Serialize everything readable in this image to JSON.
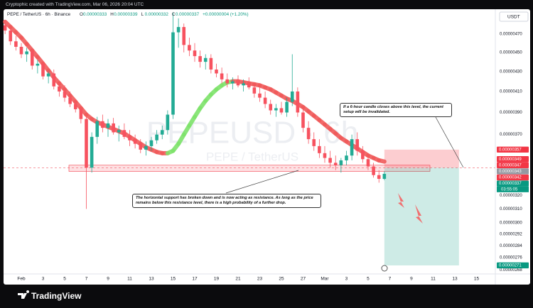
{
  "header": {
    "credit": "Cryptophic created with TradingView.com, Mar 06, 2026 20:04 UTC",
    "symbol": "PEPE / TetherUS · 6h · Binance",
    "ohlc_letters": [
      "O",
      "H",
      "L",
      "C"
    ],
    "ohlc": [
      3.33e-06,
      3.39e-06,
      3.32e-06,
      3.37e-06
    ],
    "change": "+0.00000004 (+1.20%)",
    "currency": "USDT",
    "watermark": "PEPEUSD · 6h",
    "watermark_sub": "PEPE / TetherUS",
    "logo": "TradingView"
  },
  "chart_data": {
    "type": "candlestick",
    "log": true,
    "up_color": "#22ab94",
    "down_color": "#f7525f",
    "ma_up_color": "#7ee36b",
    "ma_down_color": "#f05a5a",
    "ylim": [
      2.66e-06,
      4.97e-06
    ],
    "xlim": [
      -1.64,
      43.74
    ],
    "yticks": [
      {
        "value": 4.7e-06,
        "label": "0.00000470"
      },
      {
        "value": 4.5e-06,
        "label": "0.00000450"
      },
      {
        "value": 4.3e-06,
        "label": "0.00000430"
      },
      {
        "value": 4.1e-06,
        "label": "0.00000410"
      },
      {
        "value": 3.9e-06,
        "label": "0.00000390"
      },
      {
        "value": 3.7e-06,
        "label": "0.00000370"
      },
      {
        "value": 3.2e-06,
        "label": "0.00000320"
      },
      {
        "value": 3.1e-06,
        "label": "0.00000310"
      },
      {
        "value": 3e-06,
        "label": "0.00000300"
      },
      {
        "value": 2.92e-06,
        "label": "0.00000292"
      },
      {
        "value": 2.84e-06,
        "label": "0.00000284"
      },
      {
        "value": 2.76e-06,
        "label": "0.00000276"
      },
      {
        "value": 2.68e-06,
        "label": "0.00000268"
      }
    ],
    "xticks": [
      {
        "value": 0,
        "label": "Feb"
      },
      {
        "value": 2,
        "label": "3"
      },
      {
        "value": 4,
        "label": "5"
      },
      {
        "value": 6,
        "label": "7"
      },
      {
        "value": 8,
        "label": "9"
      },
      {
        "value": 10,
        "label": "11"
      },
      {
        "value": 12,
        "label": "13"
      },
      {
        "value": 14,
        "label": "15"
      },
      {
        "value": 16,
        "label": "17"
      },
      {
        "value": 18,
        "label": "19"
      },
      {
        "value": 20,
        "label": "21"
      },
      {
        "value": 22,
        "label": "23"
      },
      {
        "value": 24,
        "label": "25"
      },
      {
        "value": 26,
        "label": "27"
      },
      {
        "value": 28,
        "label": "Mar"
      },
      {
        "value": 30,
        "label": "3"
      },
      {
        "value": 32,
        "label": "5"
      },
      {
        "value": 34,
        "label": "7"
      },
      {
        "value": 36,
        "label": "9"
      },
      {
        "value": 38,
        "label": "11"
      },
      {
        "value": 40,
        "label": "13"
      },
      {
        "value": 42,
        "label": "15"
      }
    ],
    "x": [
      -1.5,
      -1,
      -0.5,
      0,
      0.5,
      1,
      1.5,
      2,
      2.5,
      3,
      3.5,
      4,
      4.5,
      5,
      5.5,
      6,
      6.5,
      7,
      7.5,
      8,
      8.5,
      9,
      9.5,
      10,
      10.5,
      11,
      11.5,
      12,
      12.5,
      13,
      13.5,
      14,
      14.5,
      15,
      15.5,
      16,
      16.5,
      17,
      17.5,
      18,
      18.5,
      19,
      19.5,
      20,
      20.5,
      21,
      21.5,
      22,
      22.5,
      23,
      23.5,
      24,
      24.5,
      25,
      25.5,
      26,
      26.5,
      27,
      27.5,
      28,
      28.5,
      29,
      29.5,
      30,
      30.5,
      31,
      31.5,
      32,
      32.5,
      33,
      33.5
    ],
    "open": [
      4.8e-06,
      4.74e-06,
      4.62e-06,
      4.56e-06,
      4.48e-06,
      4.51e-06,
      4.36e-06,
      4.38e-06,
      4.25e-06,
      4.28e-06,
      4.15e-06,
      4.1e-06,
      4.04e-06,
      3.98e-06,
      3.93e-06,
      3.84e-06,
      3.42e-06,
      3.68e-06,
      3.82e-06,
      3.76e-06,
      3.8e-06,
      3.72e-06,
      3.74e-06,
      3.68e-06,
      3.65e-06,
      3.62e-06,
      3.57e-06,
      3.6e-06,
      3.65e-06,
      3.7e-06,
      3.74e-06,
      3.88e-06,
      4.72e-06,
      4.78e-06,
      4.58e-06,
      4.52e-06,
      4.46e-06,
      4.4e-06,
      4.44e-06,
      4.32e-06,
      4.28e-06,
      4.22e-06,
      4.18e-06,
      4.2e-06,
      4.16e-06,
      4.18e-06,
      4.14e-06,
      4.08e-06,
      4.04e-06,
      3.98e-06,
      3.92e-06,
      3.94e-06,
      3.9e-06,
      4e-06,
      4.1e-06,
      3.9e-06,
      3.76e-06,
      3.66e-06,
      3.6e-06,
      3.54e-06,
      3.5e-06,
      3.46e-06,
      3.44e-06,
      3.48e-06,
      3.52e-06,
      3.66e-06,
      3.56e-06,
      3.49e-06,
      3.43e-06,
      3.36e-06,
      3.33e-06
    ],
    "high": [
      4.86e-06,
      4.78e-06,
      4.68e-06,
      4.6e-06,
      4.55e-06,
      4.54e-06,
      4.42e-06,
      4.41e-06,
      4.3e-06,
      4.32e-06,
      4.2e-06,
      4.16e-06,
      4.1e-06,
      4.02e-06,
      3.95e-06,
      3.86e-06,
      3.72e-06,
      3.86e-06,
      3.88e-06,
      3.84e-06,
      3.85e-06,
      3.78e-06,
      3.8e-06,
      3.74e-06,
      3.7e-06,
      3.66e-06,
      3.64e-06,
      3.68e-06,
      3.74e-06,
      3.78e-06,
      3.92e-06,
      4.95e-06,
      4.88e-06,
      4.82e-06,
      4.66e-06,
      4.6e-06,
      4.52e-06,
      4.48e-06,
      4.48e-06,
      4.38e-06,
      4.34e-06,
      4.28e-06,
      4.24e-06,
      4.26e-06,
      4.22e-06,
      4.24e-06,
      4.18e-06,
      4.14e-06,
      4.1e-06,
      4.02e-06,
      3.98e-06,
      4e-06,
      4.04e-06,
      4.48e-06,
      4.14e-06,
      3.94e-06,
      3.82e-06,
      3.72e-06,
      3.66e-06,
      3.6e-06,
      3.56e-06,
      3.52e-06,
      3.5e-06,
      3.56e-06,
      3.7e-06,
      3.72e-06,
      3.6e-06,
      3.52e-06,
      3.46e-06,
      3.4e-06,
      3.39e-06
    ],
    "low": [
      4.7e-06,
      4.58e-06,
      4.52e-06,
      4.44e-06,
      4.4e-06,
      4.32e-06,
      4.28e-06,
      4.22e-06,
      4.18e-06,
      4.12e-06,
      4.05e-06,
      4e-06,
      3.95e-06,
      3.9e-06,
      3.8e-06,
      3.1e-06,
      3.38e-06,
      3.62e-06,
      3.72e-06,
      3.68e-06,
      3.7e-06,
      3.64e-06,
      3.66e-06,
      3.6e-06,
      3.58e-06,
      3.54e-06,
      3.52e-06,
      3.56e-06,
      3.62e-06,
      3.66e-06,
      3.7e-06,
      3.84e-06,
      4.55e-06,
      4.5e-06,
      4.46e-06,
      4.4e-06,
      4.34e-06,
      4.32e-06,
      4.28e-06,
      4.24e-06,
      4.18e-06,
      4.14e-06,
      4.12e-06,
      4.14e-06,
      4.1e-06,
      4.12e-06,
      4.04e-06,
      4e-06,
      3.94e-06,
      3.88e-06,
      3.86e-06,
      3.88e-06,
      3.86e-06,
      3.96e-06,
      3.86e-06,
      3.72e-06,
      3.62e-06,
      3.56e-06,
      3.5e-06,
      3.46e-06,
      3.42e-06,
      3.4e-06,
      3.38e-06,
      3.44e-06,
      3.48e-06,
      3.52e-06,
      3.46e-06,
      3.4e-06,
      3.34e-06,
      3.3e-06,
      3.32e-06
    ],
    "close": [
      4.74e-06,
      4.62e-06,
      4.56e-06,
      4.48e-06,
      4.51e-06,
      4.36e-06,
      4.38e-06,
      4.25e-06,
      4.28e-06,
      4.15e-06,
      4.1e-06,
      4.04e-06,
      3.98e-06,
      3.93e-06,
      3.84e-06,
      3.42e-06,
      3.68e-06,
      3.82e-06,
      3.76e-06,
      3.8e-06,
      3.72e-06,
      3.74e-06,
      3.68e-06,
      3.65e-06,
      3.62e-06,
      3.57e-06,
      3.6e-06,
      3.65e-06,
      3.7e-06,
      3.74e-06,
      3.88e-06,
      4.72e-06,
      4.78e-06,
      4.58e-06,
      4.52e-06,
      4.46e-06,
      4.4e-06,
      4.44e-06,
      4.32e-06,
      4.28e-06,
      4.22e-06,
      4.18e-06,
      4.2e-06,
      4.16e-06,
      4.18e-06,
      4.14e-06,
      4.08e-06,
      4.04e-06,
      3.98e-06,
      3.92e-06,
      3.94e-06,
      3.9e-06,
      4e-06,
      4.1e-06,
      3.9e-06,
      3.76e-06,
      3.66e-06,
      3.6e-06,
      3.54e-06,
      3.5e-06,
      3.46e-06,
      3.44e-06,
      3.48e-06,
      3.52e-06,
      3.66e-06,
      3.56e-06,
      3.49e-06,
      3.43e-06,
      3.36e-06,
      3.33e-06,
      3.37e-06
    ],
    "ma": [
      4.84e-06,
      4.78e-06,
      4.72e-06,
      4.66e-06,
      4.59e-06,
      4.52e-06,
      4.45e-06,
      4.38e-06,
      4.31e-06,
      4.24e-06,
      4.18e-06,
      4.12e-06,
      4.06e-06,
      4e-06,
      3.94e-06,
      3.88e-06,
      3.84e-06,
      3.81e-06,
      3.79e-06,
      3.77e-06,
      3.75e-06,
      3.73e-06,
      3.71e-06,
      3.68e-06,
      3.65e-06,
      3.62e-06,
      3.59e-06,
      3.57e-06,
      3.55e-06,
      3.54e-06,
      3.54e-06,
      3.56e-06,
      3.62e-06,
      3.7e-06,
      3.78e-06,
      3.86e-06,
      3.94e-06,
      4.01e-06,
      4.07e-06,
      4.12e-06,
      4.16e-06,
      4.19e-06,
      4.2e-06,
      4.2e-06,
      4.19e-06,
      4.18e-06,
      4.17e-06,
      4.16e-06,
      4.14e-06,
      4.12e-06,
      4.09e-06,
      4.06e-06,
      4.03e-06,
      4.01e-06,
      3.98e-06,
      3.95e-06,
      3.91e-06,
      3.87e-06,
      3.83e-06,
      3.79e-06,
      3.75e-06,
      3.71e-06,
      3.67e-06,
      3.64e-06,
      3.61e-06,
      3.58e-06,
      3.55e-06,
      3.52e-06,
      3.5e-06,
      3.48e-06,
      3.47e-06
    ],
    "zone": [
      3.39e-06,
      3.44e-06
    ],
    "entry": 3.42e-06,
    "stop": 3.57e-06,
    "target": 2.71e-06,
    "price_tags": [
      {
        "value": 3.57e-06,
        "label": "0.00000357",
        "color": "#f23645"
      },
      {
        "value": 3.49e-06,
        "label": "0.00000349",
        "color": "#f23645"
      },
      {
        "value": 3.47e-06,
        "label": "0.00000347",
        "color": "#f23645"
      },
      {
        "value": 3.43e-06,
        "label": "0.00000343",
        "color": "#9598a1"
      },
      {
        "value": 3.42e-06,
        "label": "0.00000342",
        "color": "#f23645"
      },
      {
        "value": 3.37e-06,
        "label": "0.00000337",
        "color": "#089981"
      },
      {
        "value": 2.71e-06,
        "label": "0.00000271",
        "color": "#089981"
      }
    ],
    "countdown": "03:55:05",
    "note_top": "If a 6-hour candle closes above this level, the current setup will be invalidated.",
    "note_bottom": "The horizontal support has broken down and is now acting as resistance. As long as the price remains below this resistance level, there is a high probability of a further drop."
  }
}
